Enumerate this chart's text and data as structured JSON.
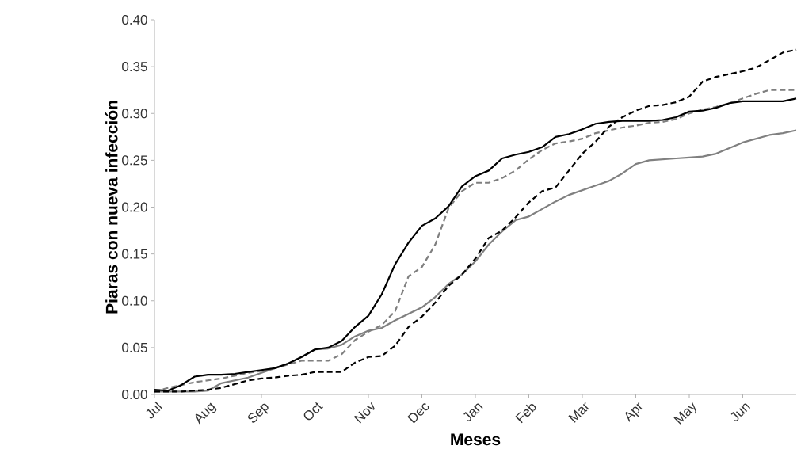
{
  "chart_data": {
    "type": "line",
    "xlabel": "Meses",
    "ylabel": "Piaras con nueva infección",
    "categories": [
      "Jul",
      null,
      null,
      null,
      "Aug",
      null,
      null,
      null,
      "Sep",
      null,
      null,
      null,
      "Oct",
      null,
      null,
      null,
      "Nov",
      null,
      null,
      null,
      "Dec",
      null,
      null,
      null,
      "Jan",
      null,
      null,
      null,
      "Feb",
      null,
      null,
      null,
      "Mar",
      null,
      null,
      null,
      "Apr",
      null,
      null,
      null,
      "May",
      null,
      null,
      null,
      "Jun",
      null,
      null,
      null,
      null
    ],
    "ylim": [
      0,
      0.4
    ],
    "yticks": [
      {
        "value": 0,
        "label": "0.00"
      },
      {
        "value": 0.05,
        "label": "0.05"
      },
      {
        "value": 0.1,
        "label": "0.10"
      },
      {
        "value": 0.15,
        "label": "0.15"
      },
      {
        "value": 0.2,
        "label": "0.20"
      },
      {
        "value": 0.25,
        "label": "0.25"
      },
      {
        "value": 0.3,
        "label": "0.30"
      },
      {
        "value": 0.35,
        "label": "0.35"
      },
      {
        "value": 0.4,
        "label": "0.40"
      }
    ],
    "series": [
      {
        "color": "#808080",
        "line_style": "solid",
        "values": [
          0.003,
          0.003,
          0.003,
          0.003,
          0.004,
          0.012,
          0.015,
          0.018,
          0.023,
          0.028,
          0.033,
          0.04,
          0.048,
          0.049,
          0.053,
          0.062,
          0.068,
          0.071,
          0.079,
          0.086,
          0.093,
          0.104,
          0.118,
          0.128,
          0.142,
          0.16,
          0.174,
          0.186,
          0.19,
          0.198,
          0.206,
          0.213,
          0.218,
          0.223,
          0.228,
          0.236,
          0.246,
          0.25,
          0.251,
          0.252,
          0.253,
          0.254,
          0.257,
          0.263,
          0.269,
          0.273,
          0.277,
          0.279,
          0.282
        ]
      },
      {
        "color": "#7f7f7f",
        "line_style": "dashed",
        "values": [
          0.003,
          0.007,
          0.01,
          0.013,
          0.015,
          0.017,
          0.02,
          0.023,
          0.025,
          0.028,
          0.032,
          0.036,
          0.036,
          0.036,
          0.043,
          0.058,
          0.067,
          0.074,
          0.089,
          0.126,
          0.136,
          0.16,
          0.199,
          0.217,
          0.226,
          0.226,
          0.231,
          0.239,
          0.251,
          0.261,
          0.268,
          0.27,
          0.273,
          0.279,
          0.282,
          0.285,
          0.287,
          0.29,
          0.291,
          0.294,
          0.3,
          0.304,
          0.307,
          0.311,
          0.316,
          0.321,
          0.325,
          0.325,
          0.325
        ]
      },
      {
        "color": "#000000",
        "line_style": "dashed",
        "values": [
          0.003,
          0.003,
          0.003,
          0.004,
          0.005,
          0.007,
          0.011,
          0.015,
          0.017,
          0.018,
          0.02,
          0.021,
          0.024,
          0.024,
          0.024,
          0.034,
          0.04,
          0.041,
          0.052,
          0.072,
          0.083,
          0.098,
          0.116,
          0.128,
          0.145,
          0.167,
          0.175,
          0.189,
          0.205,
          0.217,
          0.221,
          0.239,
          0.257,
          0.27,
          0.286,
          0.296,
          0.303,
          0.308,
          0.309,
          0.312,
          0.318,
          0.334,
          0.339,
          0.342,
          0.345,
          0.349,
          0.357,
          0.365,
          0.368
        ]
      },
      {
        "color": "#000000",
        "line_style": "solid",
        "values": [
          0.005,
          0.004,
          0.01,
          0.019,
          0.021,
          0.021,
          0.022,
          0.024,
          0.026,
          0.028,
          0.033,
          0.04,
          0.048,
          0.05,
          0.057,
          0.072,
          0.084,
          0.107,
          0.139,
          0.162,
          0.18,
          0.188,
          0.201,
          0.222,
          0.233,
          0.239,
          0.252,
          0.256,
          0.259,
          0.264,
          0.275,
          0.278,
          0.283,
          0.289,
          0.291,
          0.292,
          0.292,
          0.292,
          0.293,
          0.296,
          0.302,
          0.303,
          0.306,
          0.311,
          0.313,
          0.313,
          0.313,
          0.313,
          0.316
        ]
      }
    ]
  }
}
